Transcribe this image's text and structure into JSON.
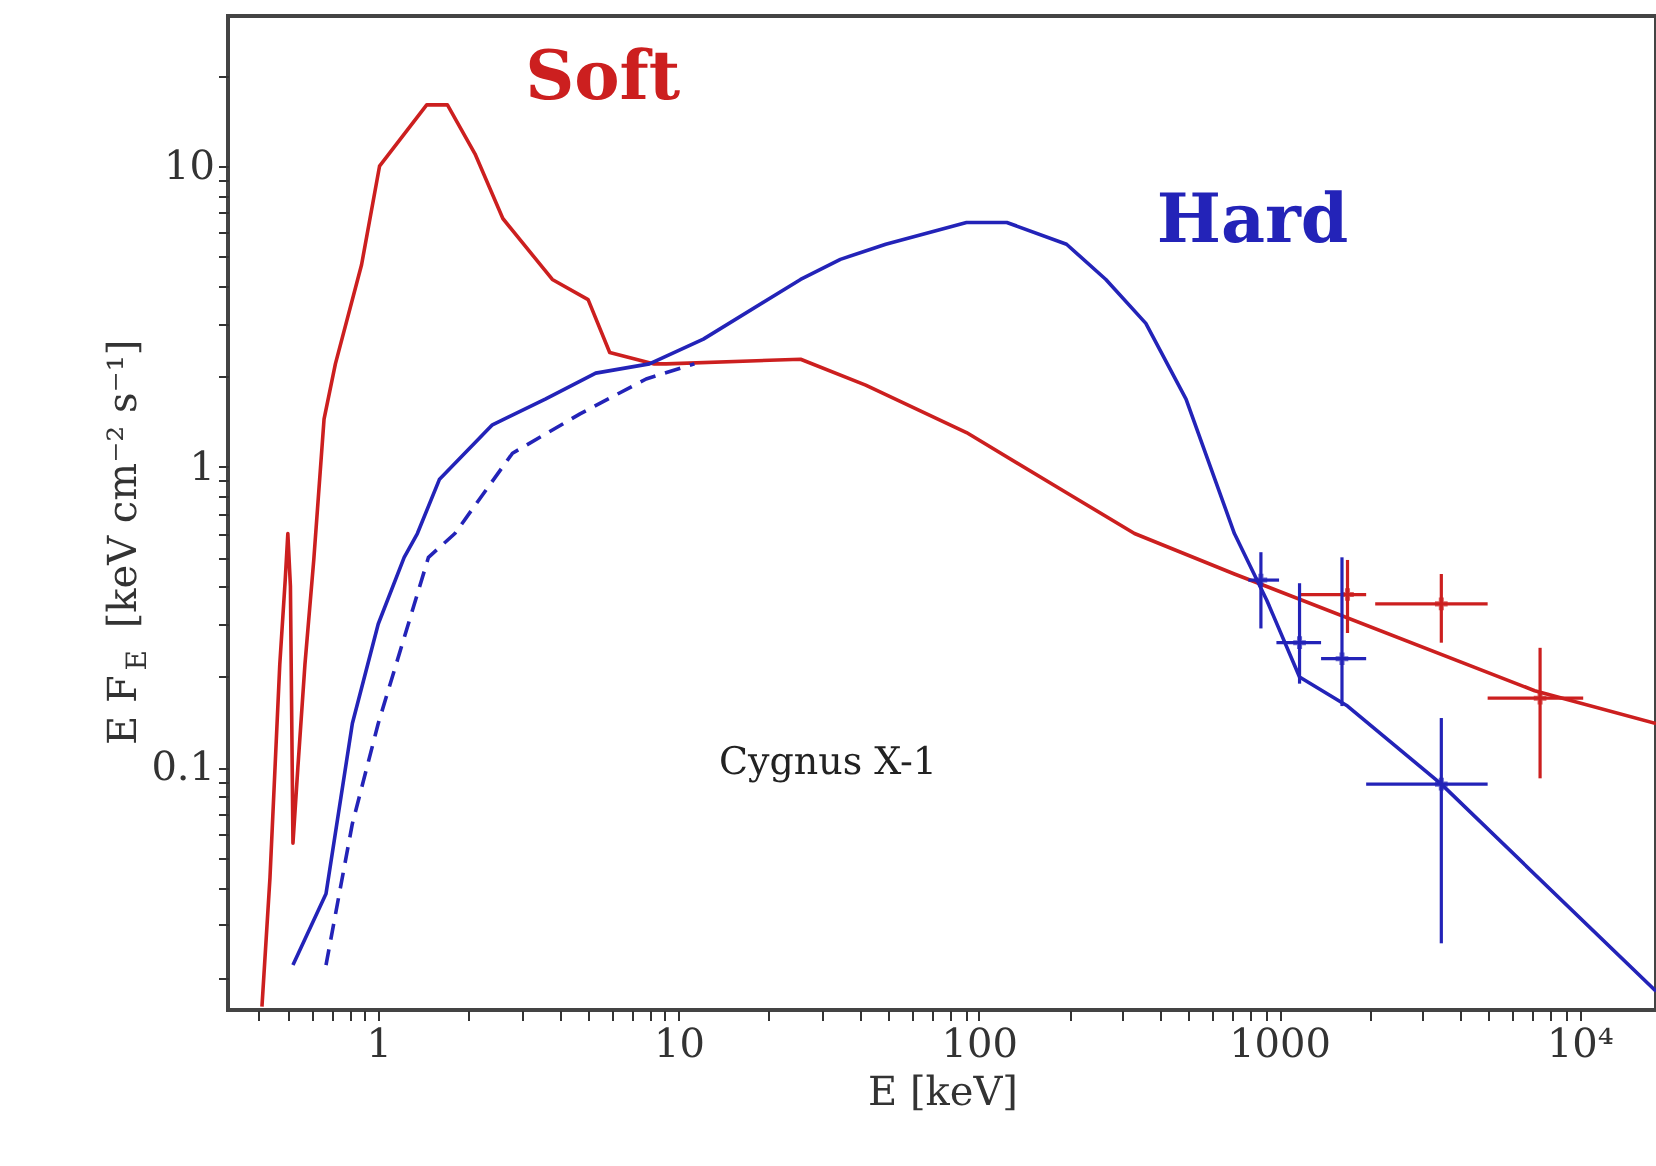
{
  "chart_data": {
    "type": "line",
    "xlabel": "E [keV]",
    "ylabel": "E F$_{E}$ [keV cm⁻² s⁻¹]",
    "annotations": [
      "Cygnus X-1"
    ],
    "log": "xy",
    "grid": false,
    "xlim": [
      0.316,
      18000
    ],
    "ylim": [
      0.0156,
      31.6
    ],
    "xticks": [
      {
        "value": 0.4,
        "label": null
      },
      {
        "value": 0.5,
        "label": null
      },
      {
        "value": 0.6,
        "label": null
      },
      {
        "value": 0.7,
        "label": null
      },
      {
        "value": 0.8,
        "label": null
      },
      {
        "value": 0.9,
        "label": null
      },
      1,
      {
        "value": 2,
        "label": null
      },
      {
        "value": 3,
        "label": null
      },
      {
        "value": 4,
        "label": null
      },
      {
        "value": 5,
        "label": null
      },
      {
        "value": 6,
        "label": null
      },
      {
        "value": 7,
        "label": null
      },
      {
        "value": 8,
        "label": null
      },
      {
        "value": 9,
        "label": null
      },
      10,
      {
        "value": 20,
        "label": null
      },
      {
        "value": 30,
        "label": null
      },
      {
        "value": 40,
        "label": null
      },
      {
        "value": 50,
        "label": null
      },
      {
        "value": 60,
        "label": null
      },
      {
        "value": 70,
        "label": null
      },
      {
        "value": 80,
        "label": null
      },
      {
        "value": 90,
        "label": null
      },
      100,
      {
        "value": 200,
        "label": null
      },
      {
        "value": 300,
        "label": null
      },
      {
        "value": 400,
        "label": null
      },
      {
        "value": 500,
        "label": null
      },
      {
        "value": 600,
        "label": null
      },
      {
        "value": 700,
        "label": null
      },
      {
        "value": 800,
        "label": null
      },
      {
        "value": 900,
        "label": null
      },
      1000,
      {
        "value": 2000,
        "label": null
      },
      {
        "value": 3000,
        "label": null
      },
      {
        "value": 4000,
        "label": null
      },
      {
        "value": 5000,
        "label": null
      },
      {
        "value": 6000,
        "label": null
      },
      {
        "value": 7000,
        "label": null
      },
      {
        "value": 8000,
        "label": null
      },
      {
        "value": 9000,
        "label": null
      },
      {
        "value": 10000,
        "label": "10⁴"
      }
    ],
    "yticks": [
      {
        "value": 0.02,
        "label": null
      },
      {
        "value": 0.03,
        "label": null
      },
      {
        "value": 0.04,
        "label": null
      },
      {
        "value": 0.05,
        "label": null
      },
      {
        "value": 0.06,
        "label": null
      },
      {
        "value": 0.07,
        "label": null
      },
      {
        "value": 0.08,
        "label": null
      },
      {
        "value": 0.09,
        "label": null
      },
      0.1,
      {
        "value": 0.2,
        "label": null
      },
      {
        "value": 0.3,
        "label": null
      },
      {
        "value": 0.4,
        "label": null
      },
      {
        "value": 0.5,
        "label": null
      },
      {
        "value": 0.6,
        "label": null
      },
      {
        "value": 0.7,
        "label": null
      },
      {
        "value": 0.8,
        "label": null
      },
      {
        "value": 0.9,
        "label": null
      },
      1,
      {
        "value": 2,
        "label": null
      },
      {
        "value": 3,
        "label": null
      },
      {
        "value": 4,
        "label": null
      },
      {
        "value": 5,
        "label": null
      },
      {
        "value": 6,
        "label": null
      },
      {
        "value": 7,
        "label": null
      },
      {
        "value": 8,
        "label": null
      },
      {
        "value": 9,
        "label": null
      },
      10,
      {
        "value": 20,
        "label": null
      }
    ],
    "series": [
      {
        "name": "Soft",
        "color": "#cc1f1f",
        "line_style": "solid",
        "x": [
          0.41,
          0.436,
          0.47,
          0.49,
          0.5,
          0.51,
          0.52,
          0.54,
          0.57,
          0.61,
          0.66,
          0.72,
          0.88,
          1.01,
          1.45,
          1.7,
          2.1,
          2.6,
          3.8,
          5.0,
          5.9,
          8.3,
          9.1,
          25.5,
          42,
          91,
          196,
          330,
          710,
          910,
          7100,
          18000
        ],
        "values": [
          0.016,
          0.043,
          0.22,
          0.42,
          0.6,
          0.4,
          0.056,
          0.1,
          0.22,
          0.49,
          1.44,
          2.2,
          4.7,
          10,
          16,
          16,
          11,
          6.7,
          4.2,
          3.6,
          2.4,
          2.2,
          2.2,
          2.28,
          1.87,
          1.3,
          0.82,
          0.6,
          0.44,
          0.4,
          0.18,
          0.14
        ]
      },
      {
        "name": "Hard",
        "color": "#2323b8",
        "line_style": "solid",
        "x": [
          0.52,
          0.67,
          0.82,
          1.0,
          1.22,
          1.35,
          1.6,
          2.4,
          3.6,
          5.3,
          8.0,
          12.1,
          25.5,
          34.6,
          49,
          91,
          124,
          196,
          265,
          360,
          490,
          710,
          910,
          1170,
          1690,
          3470,
          18000
        ],
        "values": [
          0.022,
          0.038,
          0.14,
          0.3,
          0.5,
          0.6,
          0.91,
          1.38,
          1.68,
          2.05,
          2.2,
          2.66,
          4.2,
          4.9,
          5.5,
          6.5,
          6.5,
          5.5,
          4.2,
          3.0,
          1.68,
          0.6,
          0.36,
          0.2,
          0.16,
          0.088,
          0.018
        ]
      },
      {
        "color": "#2323b8",
        "line_style": "dashed",
        "x": [
          0.67,
          0.82,
          1.0,
          1.47,
          1.8,
          2.8,
          4.7,
          7.8,
          11.3
        ],
        "values": [
          0.022,
          0.065,
          0.14,
          0.5,
          0.6,
          1.11,
          1.5,
          1.96,
          2.2
        ]
      },
      {
        "type": "scatter",
        "color": "#cc1f1f",
        "marker": "cross",
        "x": [
          1690,
          3470,
          7400
        ],
        "values": [
          0.376,
          0.35,
          0.17
        ],
        "errors": [
          [
            0.28,
            0.49
          ],
          [
            0.26,
            0.44
          ],
          [
            0.092,
            0.25
          ]
        ],
        "xerrors": [
          [
            1170,
            1950
          ],
          [
            2090,
            4950
          ],
          [
            4950,
            10300
          ]
        ]
      },
      {
        "type": "scatter",
        "color": "#2323b8",
        "marker": "cross",
        "x": [
          870,
          1170,
          1620,
          3470
        ],
        "values": [
          0.42,
          0.26,
          0.23,
          0.088
        ],
        "errors": [
          [
            0.29,
            0.52
          ],
          [
            0.19,
            0.41
          ],
          [
            0.16,
            0.5
          ],
          [
            0.026,
            0.146
          ]
        ],
        "xerrors": [
          [
            790,
            1000
          ],
          [
            980,
            1380
          ],
          [
            1380,
            1950
          ],
          [
            1950,
            4950
          ]
        ]
      }
    ]
  }
}
